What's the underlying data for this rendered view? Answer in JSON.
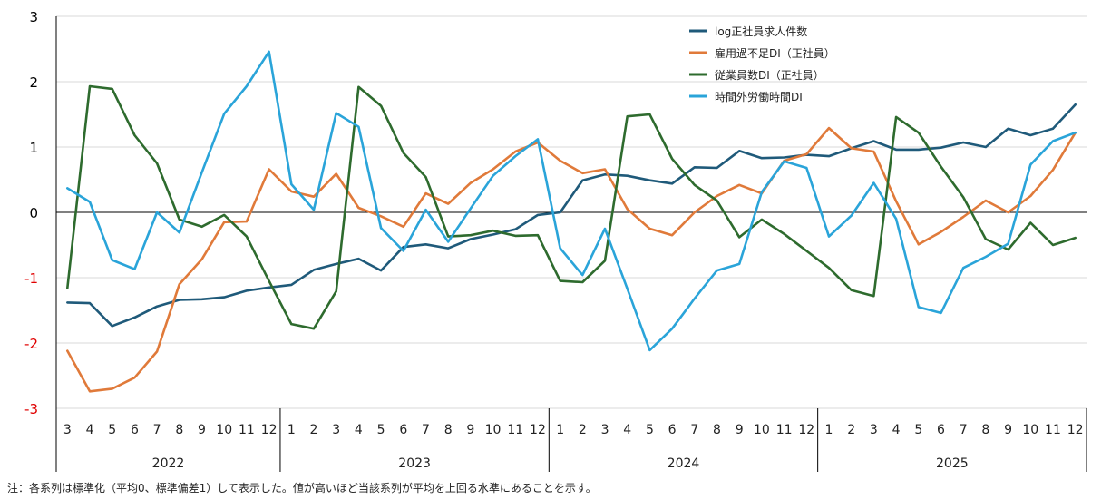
{
  "chart_data": {
    "type": "line",
    "ylim": [
      -3,
      3
    ],
    "yticks": [
      3,
      2,
      1,
      0,
      -1,
      -2,
      -3
    ],
    "colors": {
      "axis": "#000000",
      "grid": "#d9d9d9",
      "negative_tick": "#e00000",
      "positive_tick": "#000000"
    },
    "grid": true,
    "legend_position": "top-right",
    "month_labels": [
      "3",
      "4",
      "5",
      "6",
      "7",
      "8",
      "9",
      "10",
      "11",
      "12",
      "1",
      "2",
      "3",
      "4",
      "5",
      "6",
      "7",
      "8",
      "9",
      "10",
      "11",
      "12",
      "1",
      "2",
      "3",
      "4",
      "5",
      "6",
      "7",
      "8",
      "9",
      "10",
      "11",
      "12",
      "1",
      "2",
      "3",
      "4",
      "5",
      "6",
      "7",
      "8",
      "9",
      "10",
      "11",
      "12"
    ],
    "years": [
      {
        "label": "2022",
        "start": 0,
        "end": 9
      },
      {
        "label": "2023",
        "start": 10,
        "end": 21
      },
      {
        "label": "2024",
        "start": 22,
        "end": 33
      },
      {
        "label": "2025",
        "start": 34,
        "end": 45
      }
    ],
    "series": [
      {
        "name": "log正社員求人件数",
        "color": "#1f5a7a",
        "values": [
          -1.38,
          -1.39,
          -1.74,
          -1.61,
          -1.44,
          -1.34,
          -1.33,
          -1.3,
          -1.2,
          -1.15,
          -1.11,
          -0.88,
          -0.79,
          -0.71,
          -0.89,
          -0.53,
          -0.49,
          -0.55,
          -0.41,
          -0.34,
          -0.26,
          -0.04,
          0.0,
          0.49,
          0.58,
          0.56,
          0.49,
          0.44,
          0.69,
          0.68,
          0.94,
          0.83,
          0.84,
          0.88,
          0.86,
          0.98,
          1.09,
          0.96,
          0.96,
          0.99,
          1.07,
          1.0,
          1.28,
          1.18,
          1.28,
          1.65
        ]
      },
      {
        "name": "雇用過不足DI（正社員）",
        "color": "#e07a3a",
        "values": [
          -2.12,
          -2.74,
          -2.7,
          -2.53,
          -2.13,
          -1.1,
          -0.72,
          -0.15,
          -0.14,
          0.66,
          0.32,
          0.24,
          0.59,
          0.07,
          -0.06,
          -0.22,
          0.29,
          0.13,
          0.45,
          0.66,
          0.93,
          1.07,
          0.79,
          0.6,
          0.66,
          0.05,
          -0.25,
          -0.35,
          0.0,
          0.25,
          0.42,
          0.29,
          0.79,
          0.89,
          1.29,
          0.98,
          0.93,
          0.17,
          -0.49,
          -0.3,
          -0.07,
          0.18,
          0.0,
          0.25,
          0.65,
          1.22
        ]
      },
      {
        "name": "従業員数DI（正社員）",
        "color": "#2e6b2e",
        "values": [
          -1.16,
          1.93,
          1.89,
          1.18,
          0.75,
          -0.11,
          -0.22,
          -0.04,
          -0.37,
          -1.05,
          -1.71,
          -1.78,
          -1.21,
          1.92,
          1.63,
          0.91,
          0.54,
          -0.37,
          -0.35,
          -0.28,
          -0.36,
          -0.35,
          -1.05,
          -1.07,
          -0.74,
          1.47,
          1.5,
          0.82,
          0.42,
          0.18,
          -0.38,
          -0.11,
          -0.33,
          -0.59,
          -0.85,
          -1.19,
          -1.28,
          1.46,
          1.22,
          0.7,
          0.23,
          -0.41,
          -0.57,
          -0.16,
          -0.5,
          -0.39
        ]
      },
      {
        "name": "時間外労働時間DI",
        "color": "#2aa4d9",
        "values": [
          0.37,
          0.16,
          -0.73,
          -0.87,
          0.0,
          -0.31,
          0.61,
          1.51,
          1.93,
          2.46,
          0.43,
          0.04,
          1.52,
          1.31,
          -0.24,
          -0.59,
          0.04,
          -0.45,
          0.06,
          0.56,
          0.86,
          1.12,
          -0.55,
          -0.96,
          -0.25,
          -1.17,
          -2.11,
          -1.78,
          -1.32,
          -0.89,
          -0.79,
          0.31,
          0.78,
          0.68,
          -0.37,
          -0.05,
          0.45,
          -0.1,
          -1.45,
          -1.54,
          -0.85,
          -0.68,
          -0.48,
          0.73,
          1.09,
          1.22
        ]
      }
    ]
  },
  "footnote": "注：各系列は標準化（平均0、標準偏差1）して表示した。値が高いほど当該系列が平均を上回る水準にあることを示す。"
}
